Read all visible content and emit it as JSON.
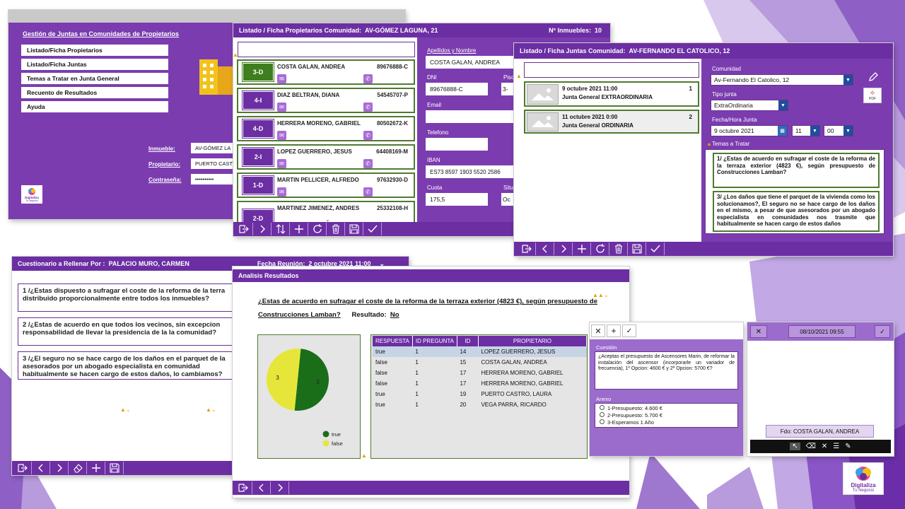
{
  "background": {
    "accent": "#6c2ea3",
    "shapes": "purple-polygons"
  },
  "main_window": {
    "title": "Gestión de Juntas en Comunidades de Propietarios",
    "menu": [
      "Listado/Ficha Propietarios",
      "Listado/Ficha Juntas",
      "Temas a Tratar en Junta General",
      "Recuento de Resultados",
      "Ayuda"
    ],
    "login": {
      "inmueble_label": "Inmueble:",
      "inmueble_value": "AV-GÓMEZ LA",
      "propietario_label": "Propietario:",
      "propietario_value": "PUERTO CAST",
      "password_label": "Contraseña:",
      "password_value": "••••••••••"
    },
    "logo_line1": "Digitaliza",
    "logo_line2": "Tu Negocio"
  },
  "propietarios_window": {
    "title": "Listado / Ficha Propietarios Comunidad:",
    "community": "AV-GÓMEZ LAGUNA, 21",
    "count_label": "Nº Inmuebles:",
    "count_value": "10",
    "rows": [
      {
        "unit": "3-D",
        "name": "COSTA GALAN, ANDREA",
        "dni": "89676888-C",
        "selected": true
      },
      {
        "unit": "4-I",
        "name": "DIAZ BELTRAN, DIANA",
        "dni": "54545707-P",
        "selected": false
      },
      {
        "unit": "4-D",
        "name": "HERRERA MORENO, GABRIEL",
        "dni": "80502672-K",
        "selected": false
      },
      {
        "unit": "2-I",
        "name": "LOPEZ GUERRERO, JESUS",
        "dni": "64408169-M",
        "selected": false
      },
      {
        "unit": "1-D",
        "name": "MARTIN PELLICER, ALFREDO",
        "dni": "97632930-D",
        "selected": false
      },
      {
        "unit": "2-D",
        "name": "MARTINEZ JIMENEZ, ANDRES",
        "dni": "25332108-H",
        "selected": false
      }
    ],
    "form": {
      "apellidos_label": "Apellidos y Nombre",
      "apellidos_value": "COSTA GALAN, ANDREA",
      "dni_label": "DNI",
      "dni_value": "89676888-C",
      "piso_label": "Piso",
      "piso_value": "3-",
      "email_label": "Email",
      "email_value": "",
      "telefono_label": "Telefono",
      "telefono_value": "",
      "iban_label": "IBAN",
      "iban_value": "ES73 8597 1903 5520 2586",
      "cuota_label": "Cuota",
      "cuota_value": "175,5",
      "situ_label": "Situ",
      "situ_value": "Oc"
    }
  },
  "juntas_window": {
    "title": "Listado / Ficha Juntas Comunidad:",
    "community": "AV-FERNANDO EL CATOLICO, 12",
    "list": [
      {
        "date": "9 octubre 2021 11:00",
        "type": "Junta General EXTRAORDINARIA",
        "count": "1",
        "selected": true
      },
      {
        "date": "11 octubre 2021 0:00",
        "type": "Junta General ORDINARIA",
        "count": "2",
        "selected": false
      }
    ],
    "form": {
      "comunidad_label": "Comunidad",
      "comunidad_value": "Av-Fernando El Catolico, 12",
      "tipo_label": "Tipo junta",
      "tipo_value": "ExtraOrdinaria",
      "fecha_label": "Fecha/Hora Junta",
      "fecha_value": "9 octubre 2021",
      "hora_value": "11",
      "min_value": "00",
      "temas_label": "Temas a Tratar",
      "temas": [
        "1/ ¿Estas de acuerdo en sufragar el coste de la reforma de la terraza exterior (4823 €), según presupuesto de Construcciones Lamban?",
        "3/ ¿Los daños que tiene el parquet de la vivienda como los solucionamos?, El seguro no se hace cargo de los daños en el mismo, a pesar de que asesorados por un abogado especialista en comunidades nos trasmite que habitualmente se hacen cargo de estos daños"
      ],
      "pdf_label": "PDF"
    }
  },
  "cuestionario_window": {
    "title_label": "Cuestionario a Rellenar Por :",
    "person": "PALACIO MURO, CARMEN",
    "fecha_label": "Fecha Reunión:",
    "fecha_value": "2 octubre 2021 11:00",
    "questions": [
      "1 /¿Estas dispuesto a sufragar el coste de la reforma de la terra distribuido proporcionalmente entre todos los inmuebles?",
      "2 /¿Estas de acuerdo en que todos los vecinos, sin excepcion responsabilidad de llevar la presidencia de la la comunidad?",
      "3 /¿El seguro no se hace cargo de los daños en el parquet de la asesorados por un abogado especialista en comunidad habitualmente se hacen cargo de estos daños, lo cambiamos?"
    ]
  },
  "analisis_window": {
    "title": "Analisis Resultados",
    "question": "¿Estas de acuerdo en sufragar el coste de la reforma de la terraza exterior (4823 €), según presupuesto de Construcciones Lamban?",
    "resultado_label": "Resultado:",
    "resultado_value": "No",
    "table": {
      "headers": [
        "RESPUESTA",
        "ID PREGUNTA",
        "ID",
        "PROPIETARIO"
      ],
      "rows": [
        [
          "true",
          "1",
          "14",
          "LOPEZ GUERRERO, JESUS"
        ],
        [
          "false",
          "1",
          "15",
          "COSTA GALAN, ANDREA"
        ],
        [
          "false",
          "1",
          "17",
          "HERRERA MORENO, GABRIEL"
        ],
        [
          "false",
          "1",
          "17",
          "HERRERA MORENO, GABRIEL"
        ],
        [
          "true",
          "1",
          "19",
          "PUERTO CASTRO, LAURA"
        ],
        [
          "true",
          "1",
          "20",
          "VEGA PARRA, RICARDO"
        ]
      ]
    }
  },
  "chart_data": {
    "type": "pie",
    "categories": [
      "true",
      "false"
    ],
    "values": [
      3,
      3
    ],
    "colors": [
      "#1a6e1a",
      "#e6e63a"
    ],
    "legend": "bottom-right",
    "title": ""
  },
  "cuestion_window": {
    "cuestion_label": "Cuestión",
    "cuestion_text": "¿Aceptas el presupuesto de Ascensores Marin, de reformar la instalación del ascensor (incorporarle un variador de frecuencia), 1º Opcion: 4600 € y 2ª Opcion: 5700 €?",
    "anexo_label": "Anexo",
    "options": [
      "1-Presupuesto: 4.600 €",
      "2-Presupuesto: 5.700 €",
      "3-Esperamos 1 Año"
    ]
  },
  "firma_window": {
    "datetime": "08/10/2021 09:55",
    "signed_by": "Fdo:  COSTA GALAN, ANDREA"
  },
  "corner_logo": {
    "line1": "Digitaliza",
    "line2": "Tu Negocio"
  }
}
